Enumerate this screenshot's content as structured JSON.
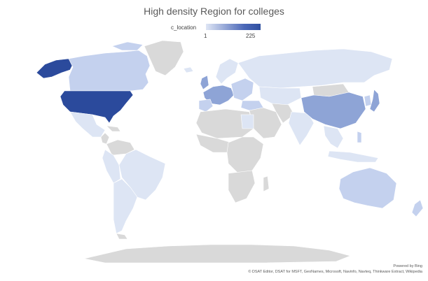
{
  "title": "High density Region for colleges",
  "legend": {
    "field": "c_location",
    "min": "1",
    "max": "225"
  },
  "credits": {
    "powered_by": "Powered by Bing",
    "attribution": "© DSAT Editor, DSAT for MSFT, GeoNames, Microsoft, Navinfo, Navteq, Thinkware Extract, Wikipedia"
  },
  "colors": {
    "no_data": "#d9d9d9",
    "very_low": "#dde5f4",
    "low": "#c4d1ee",
    "medium": "#8ea4d6",
    "high": "#3f5eb3",
    "highest": "#2b4a9c"
  }
}
